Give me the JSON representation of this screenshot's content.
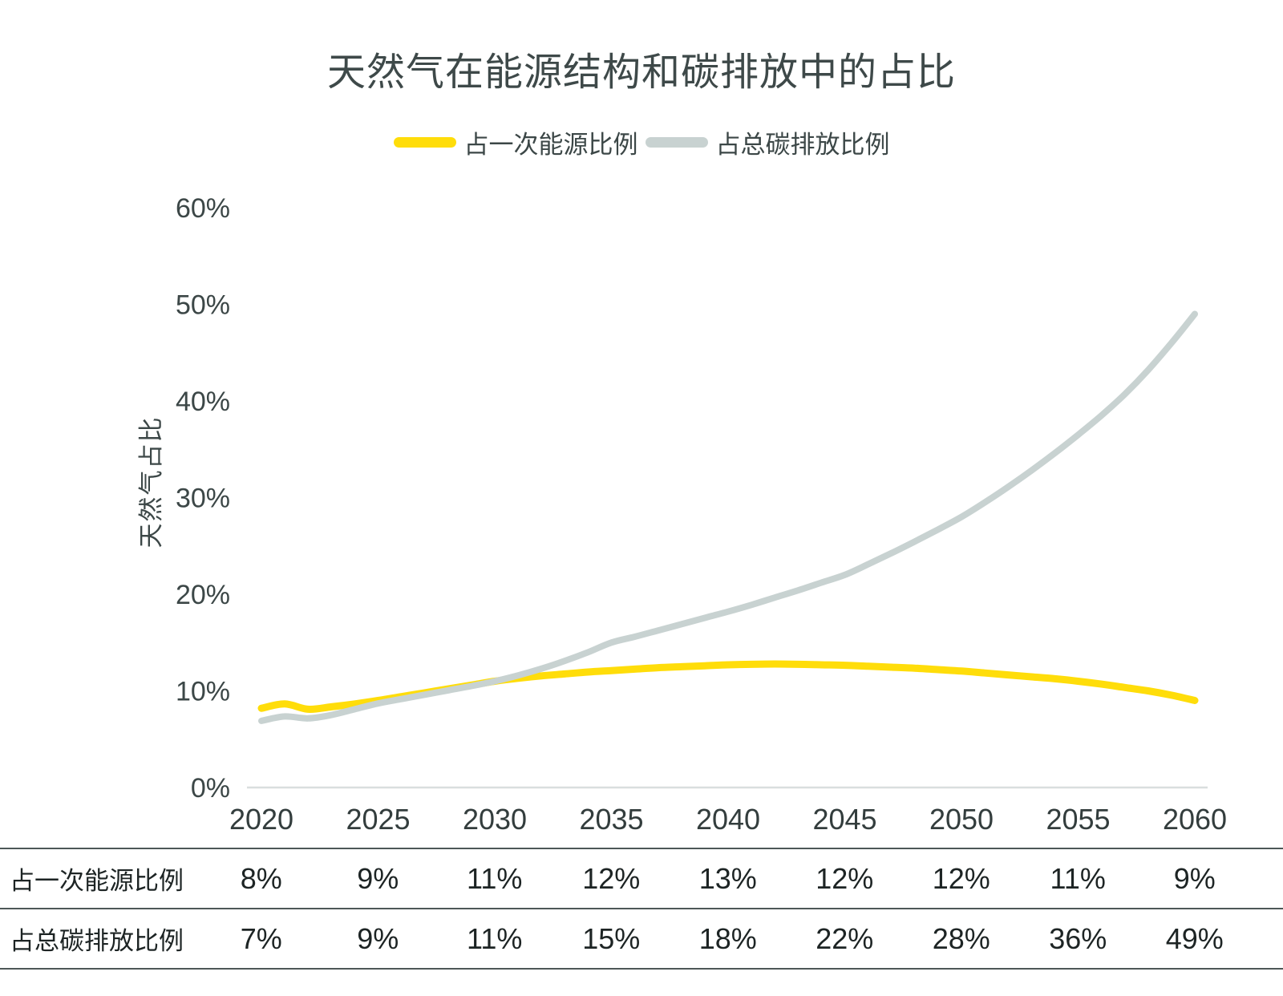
{
  "page": {
    "title": "天然气在能源结构和碳排放中的占比",
    "y_axis_title": "天然气占比"
  },
  "legend": {
    "items": [
      {
        "id": "primary-energy",
        "label": "占一次能源比例",
        "color": "#ffdd0a"
      },
      {
        "id": "carbon-emission",
        "label": "占总碳排放比例",
        "color": "#c8d2d1"
      }
    ]
  },
  "chart_data": {
    "type": "line",
    "title": "天然气在能源结构和碳排放中的占比",
    "xlabel": "",
    "ylabel": "天然气占比",
    "categories": [
      2020,
      2025,
      2030,
      2035,
      2040,
      2045,
      2050,
      2055,
      2060
    ],
    "series": [
      {
        "id": "primary-energy",
        "name": "占一次能源比例",
        "color": "#ffdd0a",
        "values": [
          8,
          9,
          11,
          12,
          13,
          12,
          12,
          11,
          9
        ]
      },
      {
        "id": "carbon-emission",
        "name": "占总碳排放比例",
        "color": "#c8d2d1",
        "values": [
          7,
          9,
          11,
          15,
          18,
          22,
          28,
          36,
          49
        ]
      }
    ],
    "ylim": [
      0,
      60
    ],
    "y_tick_labels": [
      "0%",
      "10%",
      "20%",
      "30%",
      "40%",
      "50%",
      "60%"
    ],
    "grid": false,
    "legend_position": "top",
    "line_detail": {
      "primary-energy": [
        [
          2020,
          8.2
        ],
        [
          2021,
          8.65
        ],
        [
          2022,
          8.1
        ],
        [
          2023,
          8.35
        ],
        [
          2024,
          8.65
        ],
        [
          2025,
          9.0
        ],
        [
          2026,
          9.4
        ],
        [
          2027,
          9.8
        ],
        [
          2028,
          10.2
        ],
        [
          2029,
          10.6
        ],
        [
          2030,
          11.0
        ],
        [
          2031,
          11.3
        ],
        [
          2032,
          11.55
        ],
        [
          2033,
          11.75
        ],
        [
          2034,
          11.95
        ],
        [
          2035,
          12.1
        ],
        [
          2036,
          12.25
        ],
        [
          2037,
          12.4
        ],
        [
          2038,
          12.5
        ],
        [
          2039,
          12.6
        ],
        [
          2040,
          12.7
        ],
        [
          2041,
          12.75
        ],
        [
          2042,
          12.78
        ],
        [
          2043,
          12.75
        ],
        [
          2044,
          12.7
        ],
        [
          2045,
          12.65
        ],
        [
          2046,
          12.55
        ],
        [
          2047,
          12.45
        ],
        [
          2048,
          12.35
        ],
        [
          2049,
          12.2
        ],
        [
          2050,
          12.05
        ],
        [
          2051,
          11.85
        ],
        [
          2052,
          11.65
        ],
        [
          2053,
          11.45
        ],
        [
          2054,
          11.25
        ],
        [
          2055,
          11.0
        ],
        [
          2056,
          10.7
        ],
        [
          2057,
          10.35
        ],
        [
          2058,
          10.0
        ],
        [
          2059,
          9.55
        ],
        [
          2060,
          9.0
        ]
      ],
      "carbon-emission": [
        [
          2020,
          6.9
        ],
        [
          2021,
          7.35
        ],
        [
          2022,
          7.15
        ],
        [
          2023,
          7.5
        ],
        [
          2024,
          8.1
        ],
        [
          2025,
          8.7
        ],
        [
          2026,
          9.15
        ],
        [
          2027,
          9.6
        ],
        [
          2028,
          10.05
        ],
        [
          2029,
          10.5
        ],
        [
          2030,
          11.0
        ],
        [
          2031,
          11.6
        ],
        [
          2032,
          12.3
        ],
        [
          2033,
          13.1
        ],
        [
          2034,
          14.0
        ],
        [
          2035,
          15.0
        ],
        [
          2036,
          15.6
        ],
        [
          2037,
          16.25
        ],
        [
          2038,
          16.9
        ],
        [
          2039,
          17.55
        ],
        [
          2040,
          18.2
        ],
        [
          2041,
          18.9
        ],
        [
          2042,
          19.65
        ],
        [
          2043,
          20.4
        ],
        [
          2044,
          21.2
        ],
        [
          2045,
          22.0
        ],
        [
          2046,
          23.1
        ],
        [
          2047,
          24.25
        ],
        [
          2048,
          25.45
        ],
        [
          2049,
          26.7
        ],
        [
          2050,
          28.0
        ],
        [
          2051,
          29.5
        ],
        [
          2052,
          31.1
        ],
        [
          2053,
          32.8
        ],
        [
          2054,
          34.6
        ],
        [
          2055,
          36.5
        ],
        [
          2056,
          38.5
        ],
        [
          2057,
          40.7
        ],
        [
          2058,
          43.2
        ],
        [
          2059,
          46.0
        ],
        [
          2060,
          49.0
        ]
      ]
    }
  },
  "table": {
    "rows": [
      {
        "label": "占一次能源比例",
        "values": [
          "8%",
          "9%",
          "11%",
          "12%",
          "13%",
          "12%",
          "12%",
          "11%",
          "9%"
        ]
      },
      {
        "label": "占总碳排放比例",
        "values": [
          "7%",
          "9%",
          "11%",
          "15%",
          "18%",
          "22%",
          "28%",
          "36%",
          "49%"
        ]
      }
    ]
  },
  "colors": {
    "title_text": "#3e4949",
    "tick_text": "#3c4747",
    "axis_line": "#d9dede",
    "table_border": "#4d5757",
    "table_text": "#1d2424"
  }
}
